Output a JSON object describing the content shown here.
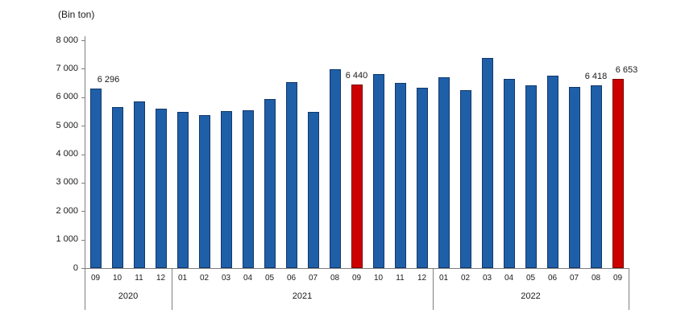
{
  "chart_data": {
    "type": "bar",
    "unit_label": "(Bin ton)",
    "ylim": [
      0,
      8000
    ],
    "ytick_step": 1000,
    "ytick_labels": [
      "0",
      "1 000",
      "2 000",
      "3 000",
      "4 000",
      "5 000",
      "6 000",
      "7 000",
      "8 000"
    ],
    "grid": false,
    "legend": "none",
    "groups": [
      {
        "year": "2020",
        "months": [
          "09",
          "10",
          "11",
          "12"
        ],
        "values": [
          6296,
          5640,
          5850,
          5590
        ]
      },
      {
        "year": "2021",
        "months": [
          "01",
          "02",
          "03",
          "04",
          "05",
          "06",
          "07",
          "08",
          "09",
          "10",
          "11",
          "12"
        ],
        "values": [
          5470,
          5380,
          5520,
          5550,
          5950,
          6540,
          5480,
          6980,
          6440,
          6800,
          6490,
          6320
        ]
      },
      {
        "year": "2022",
        "months": [
          "01",
          "02",
          "03",
          "04",
          "05",
          "06",
          "07",
          "08",
          "09"
        ],
        "values": [
          6690,
          6250,
          7380,
          6630,
          6410,
          6770,
          6360,
          6418,
          6653
        ]
      }
    ],
    "highlighted_bars": [
      {
        "year": "2021",
        "month": "09"
      },
      {
        "year": "2022",
        "month": "09"
      }
    ],
    "data_labels": [
      {
        "year": "2020",
        "month": "09",
        "text": "6 296"
      },
      {
        "year": "2021",
        "month": "09",
        "text": "6 440"
      },
      {
        "year": "2022",
        "month": "08",
        "text": "6 418"
      },
      {
        "year": "2022",
        "month": "09",
        "text": "6 653"
      }
    ],
    "colors": {
      "bar_fill": "#1F5FA8",
      "bar_border": "#12386B",
      "highlight_fill": "#CC0000",
      "highlight_border": "#7F0000",
      "axis": "#7f7f7f",
      "text": "#1a1a1a"
    }
  }
}
